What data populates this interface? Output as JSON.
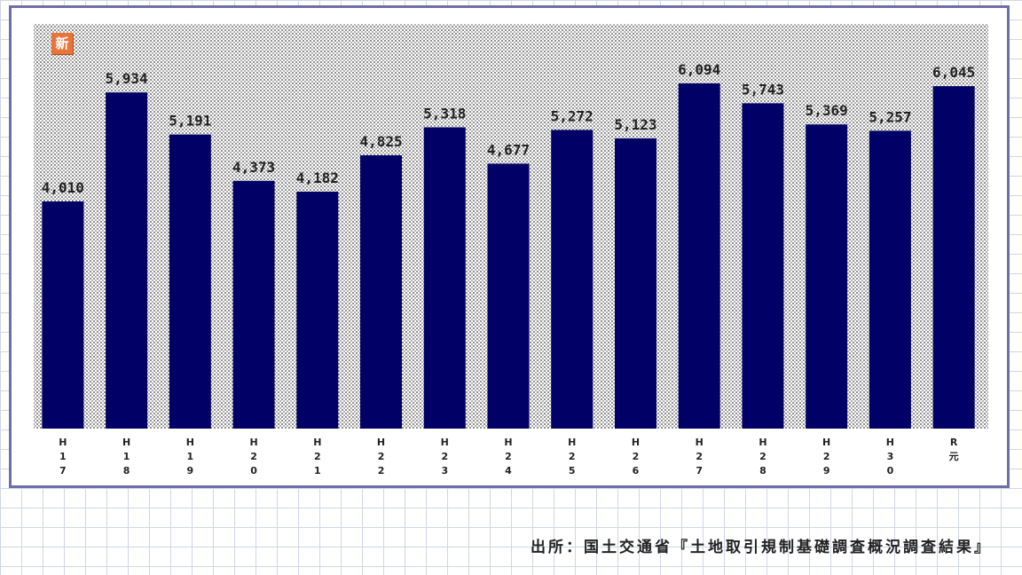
{
  "badge": {
    "text": "新"
  },
  "source": {
    "text": "出所：国土交通省『土地取引規制基礎調査概況調査結果』"
  },
  "colors": {
    "bar": "#000066",
    "frame": "#6e6ea8",
    "plot_dots": "#8f8f8f"
  },
  "chart_data": {
    "type": "bar",
    "categories": [
      [
        "H",
        "1",
        "7"
      ],
      [
        "H",
        "1",
        "8"
      ],
      [
        "H",
        "1",
        "9"
      ],
      [
        "H",
        "2",
        "0"
      ],
      [
        "H",
        "2",
        "1"
      ],
      [
        "H",
        "2",
        "2"
      ],
      [
        "H",
        "2",
        "3"
      ],
      [
        "H",
        "2",
        "4"
      ],
      [
        "H",
        "2",
        "5"
      ],
      [
        "H",
        "2",
        "6"
      ],
      [
        "H",
        "2",
        "7"
      ],
      [
        "H",
        "2",
        "8"
      ],
      [
        "H",
        "2",
        "9"
      ],
      [
        "H",
        "3",
        "0"
      ],
      [
        "R",
        "元"
      ]
    ],
    "values": [
      4010,
      5934,
      5191,
      4373,
      4182,
      4825,
      5318,
      4677,
      5272,
      5123,
      6094,
      5743,
      5369,
      5257,
      6045
    ],
    "data_labels": [
      "4,010",
      "5,934",
      "5,191",
      "4,373",
      "4,182",
      "4,825",
      "5,318",
      "4,677",
      "5,272",
      "5,123",
      "6,094",
      "5,743",
      "5,369",
      "5,257",
      "6,045"
    ],
    "title": "",
    "xlabel": "",
    "ylabel": "",
    "ylim": [
      0,
      7000
    ],
    "grid": false,
    "legend": "none"
  }
}
